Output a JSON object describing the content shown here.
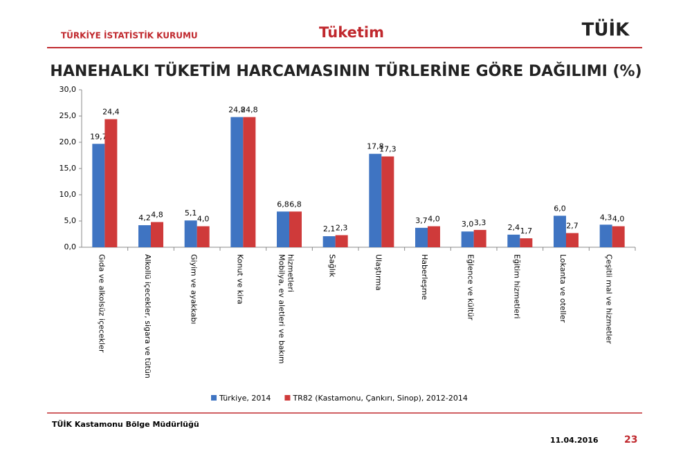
{
  "header": {
    "org": "TÜRKİYE İSTATİSTİK KURUMU",
    "section": "Tüketim",
    "logo": "TÜİK"
  },
  "footer": {
    "office": "TÜİK Kastamonu Bölge Müdürlüğü",
    "date": "11.04.2016",
    "page": "23"
  },
  "chart_data": {
    "type": "bar",
    "title": "HANEHALKI TÜKETİM HARCAMASININ TÜRLERİNE GÖRE DAĞILIMI (%)",
    "categories": [
      "Gıda ve alkolsüz içecekler",
      "Alkollü içecekler, sigara ve tütün",
      "Giyim ve ayakkabı",
      "Konut ve kira",
      "Mobilya, ev aletleri ve bakım hizmetleri",
      "Sağlık",
      "Ulaştırma",
      "Haberleşme",
      "Eğlence ve kültür",
      "Eğitim hizmetleri",
      "Lokanta ve oteller",
      "Çeşitli mal ve hizmetler"
    ],
    "series": [
      {
        "name": "Türkiye, 2014",
        "color": "#3f74c2",
        "values": [
          19.7,
          4.2,
          5.1,
          24.8,
          6.8,
          2.1,
          17.8,
          3.7,
          3.0,
          2.4,
          6.0,
          4.3
        ],
        "value_labels": [
          "19,7",
          "4,2",
          "5,1",
          "24,8",
          "6,8",
          "2,1",
          "17,8",
          "3,7",
          "3,0",
          "2,4",
          "6,0",
          "4,3"
        ]
      },
      {
        "name": "TR82 (Kastamonu, Çankırı, Sinop), 2012-2014",
        "color": "#cf3a3a",
        "values": [
          24.4,
          4.8,
          4.0,
          24.8,
          6.8,
          2.3,
          17.3,
          4.0,
          3.3,
          1.7,
          2.7,
          4.0
        ],
        "value_labels": [
          "24,4",
          "4,8",
          "4,0",
          "24,8",
          "6,8",
          "2,3",
          "17,3",
          "4,0",
          "3,3",
          "1,7",
          "2,7",
          "4,0"
        ]
      }
    ],
    "ylim": [
      0,
      30
    ],
    "yticks": [
      {
        "value": 0,
        "label": "0,0"
      },
      {
        "value": 5,
        "label": "5,0"
      },
      {
        "value": 10,
        "label": "10,0"
      },
      {
        "value": 15,
        "label": "15,0"
      },
      {
        "value": 20,
        "label": "20,0"
      },
      {
        "value": 25,
        "label": "25,0"
      },
      {
        "value": 30,
        "label": "30,0"
      }
    ],
    "legend": "bottom"
  }
}
